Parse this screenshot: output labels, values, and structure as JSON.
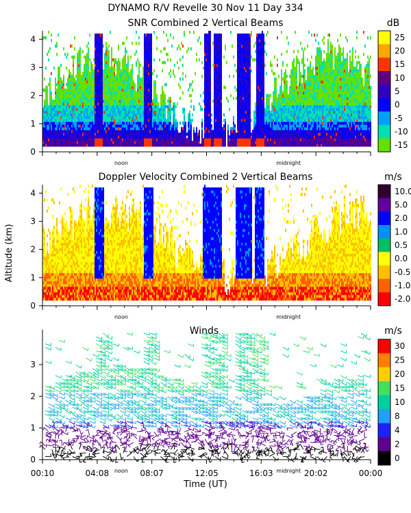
{
  "figure": {
    "title_line1": "DYNAMO R/V Revelle  30 Nov 11 Day 334",
    "ylabel": "Altitude (km)",
    "xlabel": "Time (UT)",
    "time_tick_labels": [
      "00:10",
      "04:08",
      "08:07",
      "12:05",
      "16:03",
      "20:02",
      "00:00"
    ],
    "noon_label": "noon",
    "midnight_label": "midnight"
  },
  "chart_data": [
    {
      "type": "heatmap",
      "title": "SNR Combined 2 Vertical Beams",
      "y_ticks": [
        "0",
        "1",
        "2",
        "3",
        "4"
      ],
      "ylim": [
        0,
        4.3
      ],
      "colorbar": {
        "unit": "dB",
        "labels": [
          "25",
          "20",
          "15",
          "10",
          "5",
          "0",
          "-5",
          "-10",
          "-15"
        ],
        "colors": [
          "#ffff00",
          "#ffa500",
          "#ff3300",
          "#600080",
          "#3000c0",
          "#0000ff",
          "#00a0ff",
          "#00e0b0",
          "#66e000"
        ]
      }
    },
    {
      "type": "heatmap",
      "title": "Doppler Velocity Combined 2 Vertical Beams",
      "y_ticks": [
        "0",
        "1",
        "2",
        "3",
        "4"
      ],
      "ylim": [
        0,
        4.3
      ],
      "colorbar": {
        "unit": "m/s",
        "labels": [
          "10.0",
          "5.0",
          "2.0",
          "1.0",
          "0.5",
          "0.0",
          "-0.5",
          "-1.0",
          "-2.0"
        ],
        "colors": [
          "#300030",
          "#6000a0",
          "#0000ff",
          "#0090ff",
          "#00c060",
          "#ffff00",
          "#ffc000",
          "#ff6000",
          "#ff0000"
        ]
      }
    },
    {
      "type": "scatter",
      "title": "Winds",
      "y_ticks": [
        "0",
        "1",
        "2",
        "3"
      ],
      "ylim": [
        0,
        4.1
      ],
      "colorbar": {
        "unit": "m/s",
        "labels": [
          "30",
          "25",
          "20",
          "15",
          "10",
          "8",
          "4",
          "2",
          "0"
        ],
        "colors": [
          "#ff0000",
          "#ff8000",
          "#ffd000",
          "#40e060",
          "#00d0a0",
          "#20a0ff",
          "#2020ff",
          "#600090",
          "#000000"
        ]
      }
    }
  ]
}
